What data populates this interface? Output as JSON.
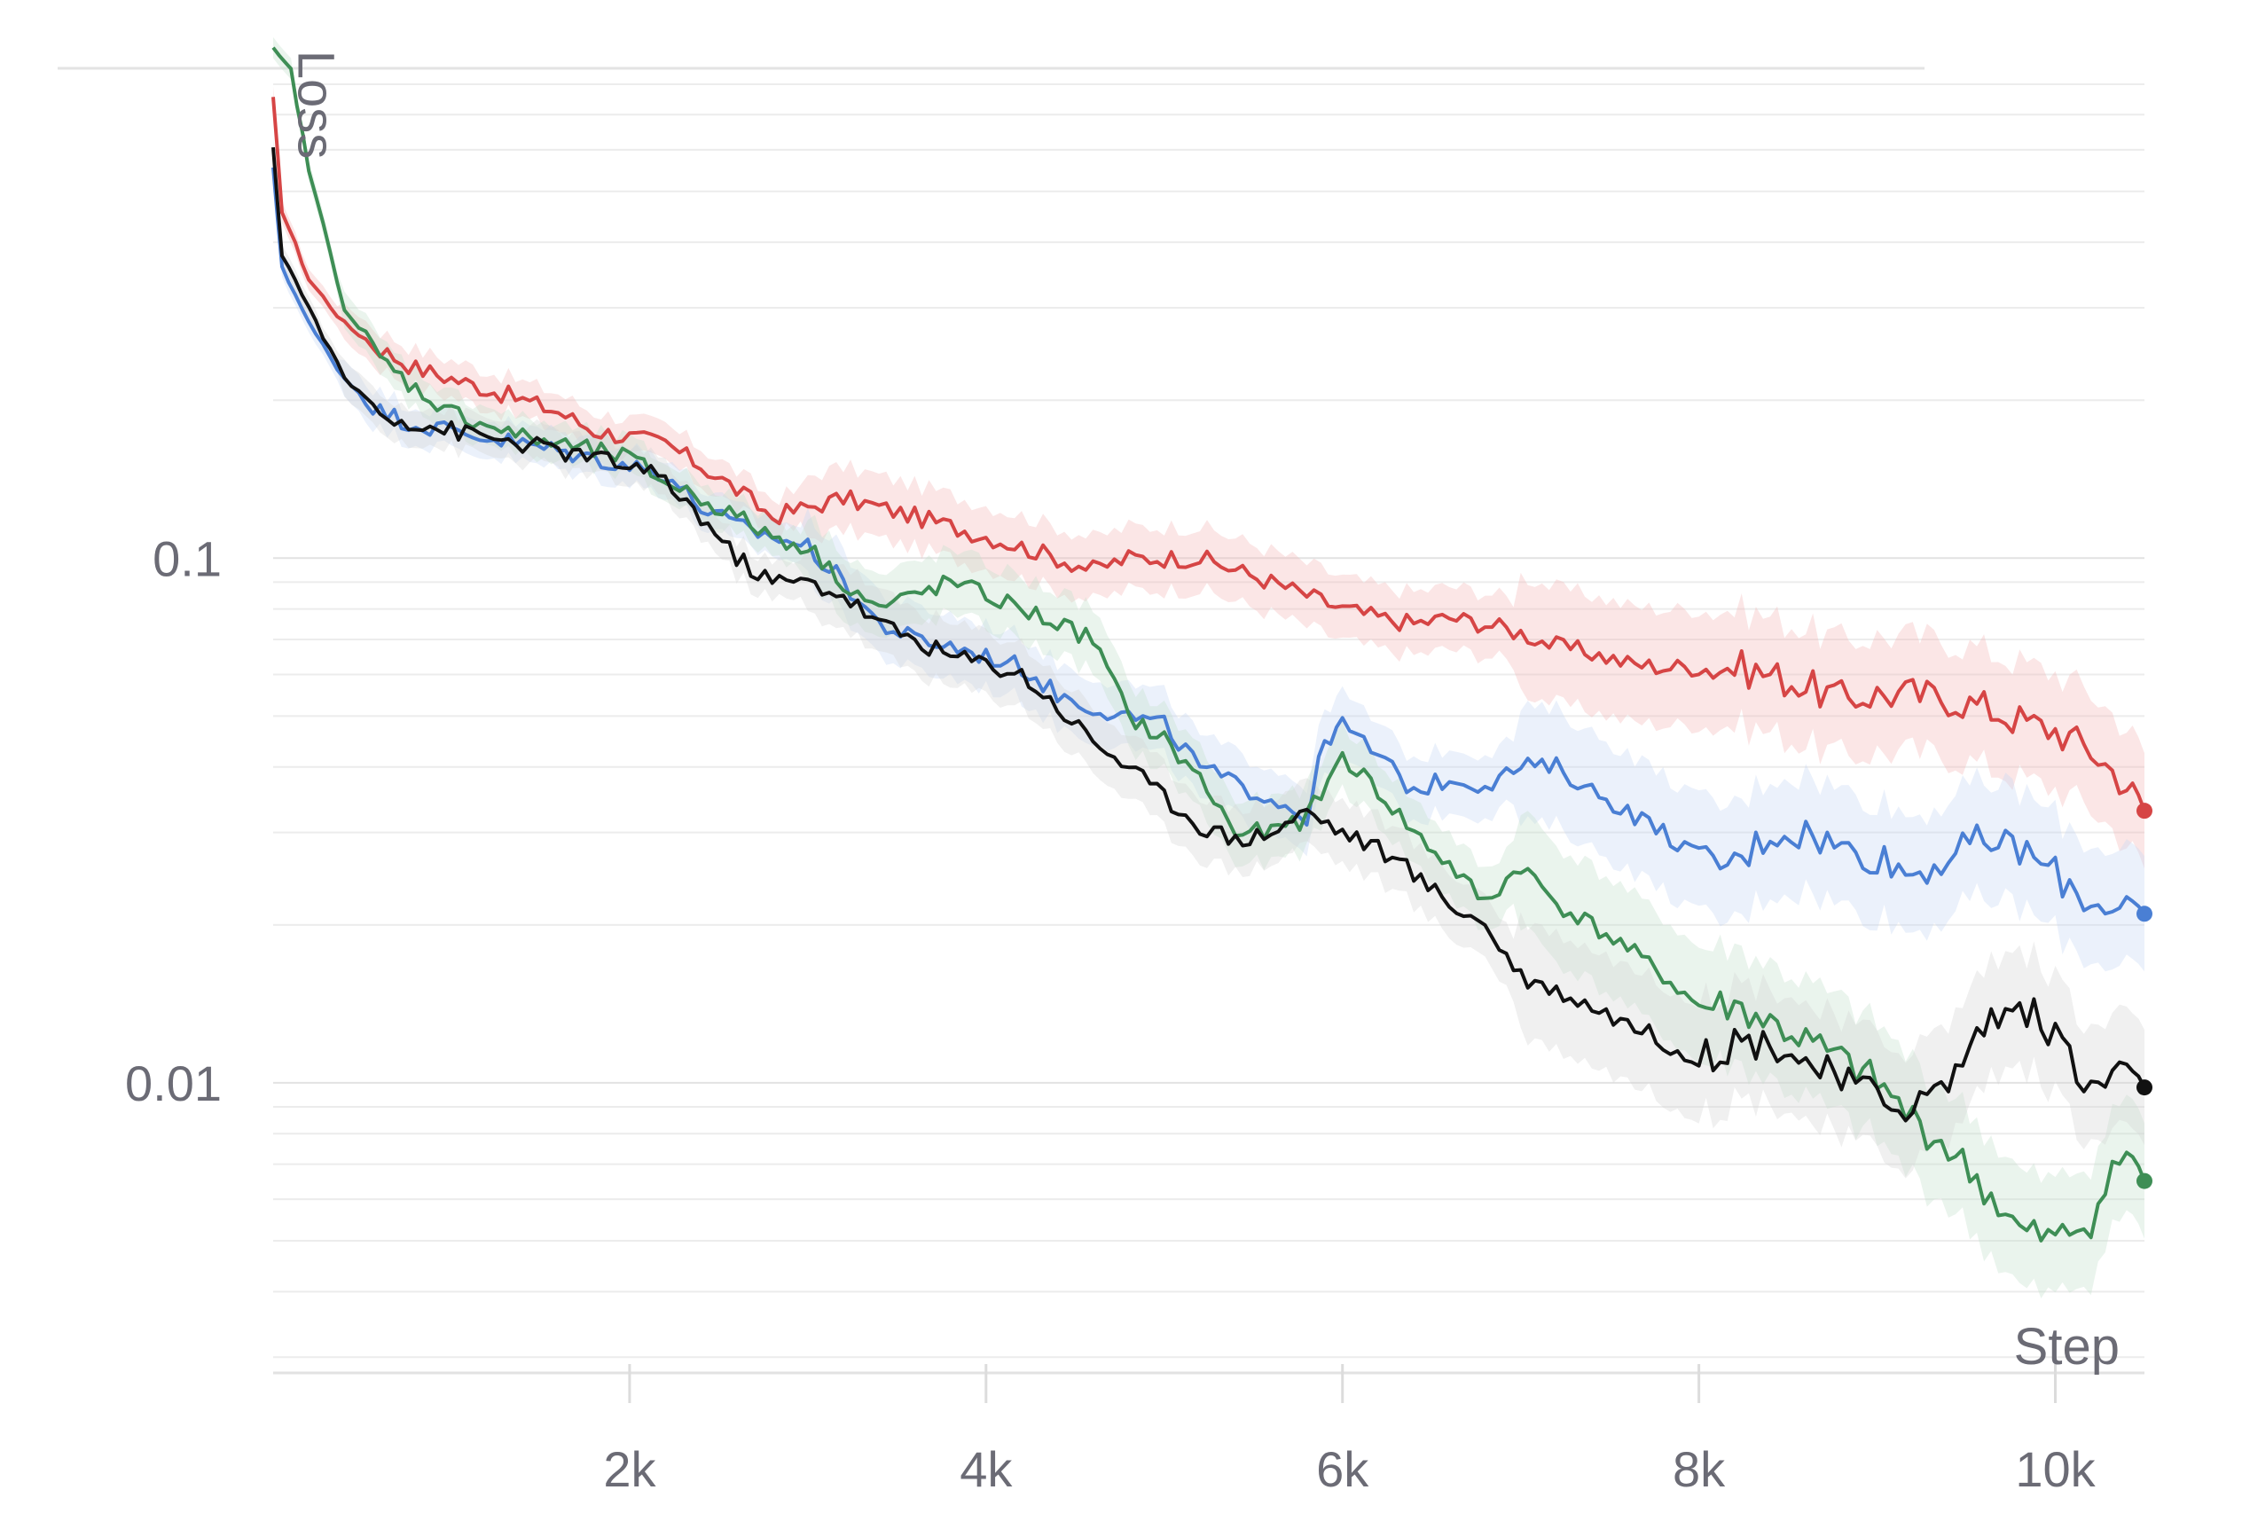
{
  "chart_data": {
    "type": "line",
    "title": "",
    "xlabel": "Step",
    "ylabel": "Loss",
    "x_scale": "linear",
    "y_scale": "log",
    "xlim": [
      0,
      10500
    ],
    "ylim": [
      0.0028,
      0.8
    ],
    "x_ticks": [
      2000,
      4000,
      6000,
      8000,
      10000
    ],
    "x_tick_labels": [
      "2k",
      "4k",
      "6k",
      "8k",
      "10k"
    ],
    "y_ticks": [
      0.1,
      0.01
    ],
    "y_tick_labels": [
      "0.1",
      "0.01"
    ],
    "grid": true,
    "legend": "none",
    "shaded_band": true,
    "series": [
      {
        "color": "#d64545",
        "band_color": "#f4b8b8",
        "points": [
          [
            0,
            0.75
          ],
          [
            50,
            0.46
          ],
          [
            200,
            0.34
          ],
          [
            400,
            0.28
          ],
          [
            600,
            0.25
          ],
          [
            800,
            0.23
          ],
          [
            1000,
            0.22
          ],
          [
            1200,
            0.21
          ],
          [
            1400,
            0.2
          ],
          [
            1600,
            0.19
          ],
          [
            1800,
            0.175
          ],
          [
            2000,
            0.17
          ],
          [
            2200,
            0.165
          ],
          [
            2400,
            0.15
          ],
          [
            2600,
            0.135
          ],
          [
            2800,
            0.12
          ],
          [
            3000,
            0.125
          ],
          [
            3200,
            0.13
          ],
          [
            3400,
            0.125
          ],
          [
            3600,
            0.12
          ],
          [
            3800,
            0.115
          ],
          [
            4000,
            0.11
          ],
          [
            4200,
            0.105
          ],
          [
            4400,
            0.1
          ],
          [
            4600,
            0.095
          ],
          [
            4800,
            0.1
          ],
          [
            5000,
            0.1
          ],
          [
            5200,
            0.1
          ],
          [
            5400,
            0.095
          ],
          [
            5600,
            0.09
          ],
          [
            5800,
            0.085
          ],
          [
            6000,
            0.08
          ],
          [
            6200,
            0.077
          ],
          [
            6400,
            0.075
          ],
          [
            6600,
            0.077
          ],
          [
            6800,
            0.075
          ],
          [
            7000,
            0.072
          ],
          [
            7200,
            0.068
          ],
          [
            7400,
            0.066
          ],
          [
            7600,
            0.063
          ],
          [
            7800,
            0.062
          ],
          [
            8000,
            0.062
          ],
          [
            8200,
            0.062
          ],
          [
            8400,
            0.06
          ],
          [
            8600,
            0.057
          ],
          [
            8800,
            0.054
          ],
          [
            9000,
            0.055
          ],
          [
            9200,
            0.055
          ],
          [
            9400,
            0.054
          ],
          [
            9600,
            0.052
          ],
          [
            9800,
            0.049
          ],
          [
            10000,
            0.047
          ],
          [
            10200,
            0.043
          ],
          [
            10400,
            0.037
          ],
          [
            10500,
            0.033
          ]
        ]
      },
      {
        "color": "#4a7fd4",
        "band_color": "#c7d8f4",
        "points": [
          [
            0,
            0.55
          ],
          [
            50,
            0.36
          ],
          [
            200,
            0.28
          ],
          [
            400,
            0.22
          ],
          [
            600,
            0.19
          ],
          [
            800,
            0.18
          ],
          [
            1000,
            0.175
          ],
          [
            1200,
            0.17
          ],
          [
            1400,
            0.165
          ],
          [
            1600,
            0.16
          ],
          [
            1800,
            0.155
          ],
          [
            2000,
            0.15
          ],
          [
            2200,
            0.145
          ],
          [
            2400,
            0.125
          ],
          [
            2600,
            0.115
          ],
          [
            2800,
            0.11
          ],
          [
            3000,
            0.105
          ],
          [
            3200,
            0.09
          ],
          [
            3400,
            0.075
          ],
          [
            3600,
            0.07
          ],
          [
            3800,
            0.068
          ],
          [
            4000,
            0.065
          ],
          [
            4200,
            0.062
          ],
          [
            4400,
            0.055
          ],
          [
            4600,
            0.052
          ],
          [
            4800,
            0.05
          ],
          [
            5000,
            0.048
          ],
          [
            5200,
            0.04
          ],
          [
            5400,
            0.037
          ],
          [
            5600,
            0.035
          ],
          [
            5800,
            0.032
          ],
          [
            5900,
            0.045
          ],
          [
            6000,
            0.048
          ],
          [
            6200,
            0.042
          ],
          [
            6400,
            0.036
          ],
          [
            6600,
            0.038
          ],
          [
            6800,
            0.037
          ],
          [
            7000,
            0.04
          ],
          [
            7200,
            0.04
          ],
          [
            7400,
            0.036
          ],
          [
            7600,
            0.033
          ],
          [
            7800,
            0.03
          ],
          [
            8000,
            0.027
          ],
          [
            8200,
            0.026
          ],
          [
            8400,
            0.03
          ],
          [
            8600,
            0.03
          ],
          [
            8800,
            0.028
          ],
          [
            9000,
            0.027
          ],
          [
            9200,
            0.025
          ],
          [
            9400,
            0.027
          ],
          [
            9600,
            0.029
          ],
          [
            9800,
            0.028
          ],
          [
            10000,
            0.025
          ],
          [
            10200,
            0.022
          ],
          [
            10400,
            0.022
          ],
          [
            10500,
            0.021
          ]
        ]
      },
      {
        "color": "#3e8e55",
        "band_color": "#c4e0cb",
        "points": [
          [
            0,
            0.93
          ],
          [
            100,
            0.85
          ],
          [
            200,
            0.55
          ],
          [
            400,
            0.3
          ],
          [
            600,
            0.24
          ],
          [
            800,
            0.21
          ],
          [
            1000,
            0.19
          ],
          [
            1200,
            0.18
          ],
          [
            1400,
            0.17
          ],
          [
            1600,
            0.165
          ],
          [
            1800,
            0.16
          ],
          [
            2000,
            0.155
          ],
          [
            2200,
            0.14
          ],
          [
            2400,
            0.13
          ],
          [
            2600,
            0.12
          ],
          [
            2800,
            0.11
          ],
          [
            3000,
            0.105
          ],
          [
            3200,
            0.09
          ],
          [
            3400,
            0.08
          ],
          [
            3600,
            0.085
          ],
          [
            3800,
            0.09
          ],
          [
            4000,
            0.085
          ],
          [
            4200,
            0.08
          ],
          [
            4400,
            0.075
          ],
          [
            4600,
            0.07
          ],
          [
            4800,
            0.05
          ],
          [
            5000,
            0.045
          ],
          [
            5200,
            0.038
          ],
          [
            5400,
            0.03
          ],
          [
            5600,
            0.03
          ],
          [
            5800,
            0.032
          ],
          [
            6000,
            0.042
          ],
          [
            6200,
            0.036
          ],
          [
            6400,
            0.03
          ],
          [
            6600,
            0.026
          ],
          [
            6800,
            0.022
          ],
          [
            7000,
            0.026
          ],
          [
            7200,
            0.022
          ],
          [
            7400,
            0.02
          ],
          [
            7600,
            0.018
          ],
          [
            7800,
            0.016
          ],
          [
            8000,
            0.014
          ],
          [
            8200,
            0.014
          ],
          [
            8400,
            0.013
          ],
          [
            8600,
            0.012
          ],
          [
            8800,
            0.011
          ],
          [
            9000,
            0.01
          ],
          [
            9200,
            0.0085
          ],
          [
            9400,
            0.0075
          ],
          [
            9600,
            0.0063
          ],
          [
            9800,
            0.0052
          ],
          [
            10000,
            0.005
          ],
          [
            10200,
            0.0055
          ],
          [
            10400,
            0.0075
          ],
          [
            10500,
            0.0065
          ]
        ]
      },
      {
        "color": "#111111",
        "band_color": "#d4d4d4",
        "points": [
          [
            0,
            0.6
          ],
          [
            50,
            0.38
          ],
          [
            200,
            0.3
          ],
          [
            400,
            0.22
          ],
          [
            600,
            0.19
          ],
          [
            800,
            0.18
          ],
          [
            1000,
            0.175
          ],
          [
            1200,
            0.17
          ],
          [
            1400,
            0.165
          ],
          [
            1600,
            0.16
          ],
          [
            1800,
            0.155
          ],
          [
            2000,
            0.15
          ],
          [
            2200,
            0.14
          ],
          [
            2400,
            0.12
          ],
          [
            2600,
            0.1
          ],
          [
            2800,
            0.09
          ],
          [
            3000,
            0.09
          ],
          [
            3200,
            0.085
          ],
          [
            3400,
            0.075
          ],
          [
            3600,
            0.07
          ],
          [
            3800,
            0.065
          ],
          [
            4000,
            0.063
          ],
          [
            4200,
            0.06
          ],
          [
            4400,
            0.052
          ],
          [
            4600,
            0.045
          ],
          [
            4800,
            0.04
          ],
          [
            5000,
            0.035
          ],
          [
            5200,
            0.031
          ],
          [
            5400,
            0.029
          ],
          [
            5600,
            0.03
          ],
          [
            5800,
            0.033
          ],
          [
            6000,
            0.03
          ],
          [
            6200,
            0.028
          ],
          [
            6400,
            0.025
          ],
          [
            6600,
            0.022
          ],
          [
            6800,
            0.02
          ],
          [
            7000,
            0.016
          ],
          [
            7200,
            0.015
          ],
          [
            7400,
            0.014
          ],
          [
            7600,
            0.013
          ],
          [
            7800,
            0.012
          ],
          [
            8000,
            0.011
          ],
          [
            8200,
            0.012
          ],
          [
            8400,
            0.012
          ],
          [
            8600,
            0.011
          ],
          [
            8800,
            0.01
          ],
          [
            9000,
            0.0095
          ],
          [
            9200,
            0.009
          ],
          [
            9400,
            0.01
          ],
          [
            9600,
            0.013
          ],
          [
            9800,
            0.014
          ],
          [
            10000,
            0.0125
          ],
          [
            10200,
            0.0095
          ],
          [
            10400,
            0.011
          ],
          [
            10500,
            0.0098
          ]
        ]
      }
    ]
  }
}
